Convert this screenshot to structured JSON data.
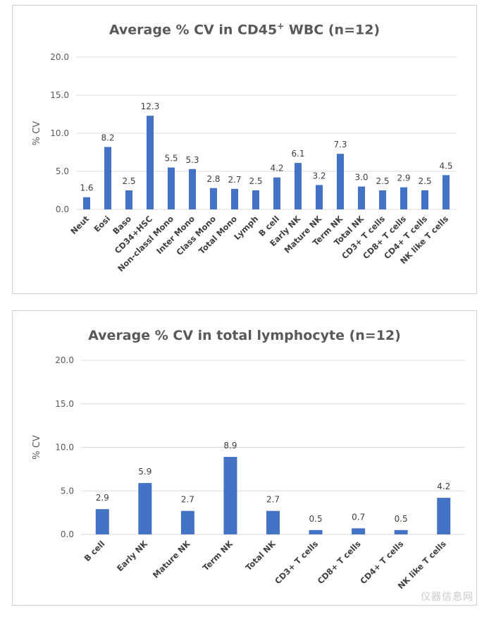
{
  "chart_data": [
    {
      "type": "bar",
      "title_main": "Average % CV in CD45",
      "title_sup": "+",
      "title_rest": " WBC (n=12)",
      "ylabel": "% CV",
      "ylim": [
        0,
        20
      ],
      "y_ticks": [
        "0.0",
        "5.0",
        "10.0",
        "15.0",
        "20.0"
      ],
      "grid": true,
      "bar_color": "#4472c4",
      "categories": [
        "Neut",
        "Eosi",
        "Baso",
        "CD34+HSC",
        "Non-classl Mono",
        "Inter Mono",
        "Class Mono",
        "Total Mono",
        "Lymph",
        "B cell",
        "Early NK",
        "Mature NK",
        "Term NK",
        "Total NK",
        "CD3+ T cells",
        "CD8+ T cells",
        "CD4+ T cells",
        "NK like T cells"
      ],
      "values": [
        1.6,
        8.2,
        2.5,
        12.3,
        5.5,
        5.3,
        2.8,
        2.7,
        2.5,
        4.2,
        6.1,
        3.2,
        7.3,
        3.0,
        2.5,
        2.9,
        2.5,
        4.5
      ],
      "value_labels": [
        "1.6",
        "8.2",
        "2.5",
        "12.3",
        "5.5",
        "5.3",
        "2.8",
        "2.7",
        "2.5",
        "4.2",
        "6.1",
        "3.2",
        "7.3",
        "3.0",
        "2.5",
        "2.9",
        "2.5",
        "4.5"
      ]
    },
    {
      "type": "bar",
      "title": "Average % CV in total lymphocyte (n=12)",
      "ylabel": "% CV",
      "ylim": [
        0,
        20
      ],
      "y_ticks": [
        "0.0",
        "5.0",
        "10.0",
        "15.0",
        "20.0"
      ],
      "grid": true,
      "bar_color": "#4472c4",
      "categories": [
        "B cell",
        "Early NK",
        "Mature NK",
        "Term NK",
        "Total NK",
        "CD3+ T cells",
        "CD8+ T cells",
        "CD4+ T cells",
        "NK like T cells"
      ],
      "values": [
        2.9,
        5.9,
        2.7,
        8.9,
        2.7,
        0.5,
        0.7,
        0.5,
        4.2
      ],
      "value_labels": [
        "2.9",
        "5.9",
        "2.7",
        "8.9",
        "2.7",
        "0.5",
        "0.7",
        "0.5",
        "4.2"
      ]
    }
  ],
  "watermark": "仪器信息网"
}
